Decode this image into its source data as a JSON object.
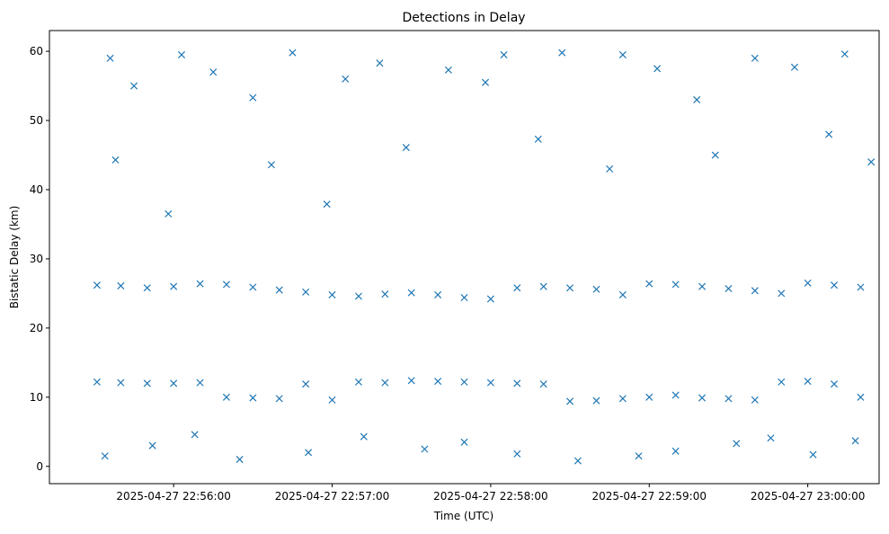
{
  "chart_data": {
    "type": "scatter",
    "title": "Detections in Delay",
    "xlabel": "Time (UTC)",
    "ylabel": "Bistatic Delay (km)",
    "marker": "x",
    "color": "#1f77b4",
    "x_range": [
      "2025-04-27 22:55:13",
      "2025-04-27 23:00:27"
    ],
    "ylim": [
      -2.5,
      63
    ],
    "x_ticks": [
      "2025-04-27 22:56:00",
      "2025-04-27 22:57:00",
      "2025-04-27 22:58:00",
      "2025-04-27 22:59:00",
      "2025-04-27 23:00:00"
    ],
    "y_ticks": [
      0,
      10,
      20,
      30,
      40,
      50,
      60
    ],
    "grid": false,
    "legend": "none",
    "time_range": [
      "2025-04-27 22:55:31",
      "2025-04-27 23:00:24"
    ],
    "series": [
      {
        "description": "Upper track near 26 km",
        "points": [
          [
            "2025-04-27 22:55:31",
            26.2
          ],
          [
            "2025-04-27 22:55:40",
            26.1
          ],
          [
            "2025-04-27 22:55:50",
            25.8
          ],
          [
            "2025-04-27 22:56:00",
            26.0
          ],
          [
            "2025-04-27 22:56:10",
            26.4
          ],
          [
            "2025-04-27 22:56:20",
            26.3
          ],
          [
            "2025-04-27 22:56:30",
            25.9
          ],
          [
            "2025-04-27 22:56:40",
            25.5
          ],
          [
            "2025-04-27 22:56:50",
            25.2
          ],
          [
            "2025-04-27 22:57:00",
            24.8
          ],
          [
            "2025-04-27 22:57:10",
            24.6
          ],
          [
            "2025-04-27 22:57:20",
            24.9
          ],
          [
            "2025-04-27 22:57:30",
            25.1
          ],
          [
            "2025-04-27 22:57:40",
            24.8
          ],
          [
            "2025-04-27 22:57:50",
            24.4
          ],
          [
            "2025-04-27 22:58:00",
            24.2
          ],
          [
            "2025-04-27 22:58:10",
            25.8
          ],
          [
            "2025-04-27 22:58:20",
            26.0
          ],
          [
            "2025-04-27 22:58:30",
            25.8
          ],
          [
            "2025-04-27 22:58:40",
            25.6
          ],
          [
            "2025-04-27 22:58:50",
            24.8
          ],
          [
            "2025-04-27 22:59:00",
            26.4
          ],
          [
            "2025-04-27 22:59:10",
            26.3
          ],
          [
            "2025-04-27 22:59:20",
            26.0
          ],
          [
            "2025-04-27 22:59:30",
            25.7
          ],
          [
            "2025-04-27 22:59:40",
            25.4
          ],
          [
            "2025-04-27 22:59:50",
            25.0
          ],
          [
            "2025-04-27 23:00:00",
            26.5
          ],
          [
            "2025-04-27 23:00:10",
            26.2
          ],
          [
            "2025-04-27 23:00:20",
            25.9
          ]
        ]
      },
      {
        "description": "Lower track near 12 km",
        "points": [
          [
            "2025-04-27 22:55:31",
            12.2
          ],
          [
            "2025-04-27 22:55:40",
            12.1
          ],
          [
            "2025-04-27 22:55:50",
            12.0
          ],
          [
            "2025-04-27 22:56:00",
            12.0
          ],
          [
            "2025-04-27 22:56:10",
            12.1
          ],
          [
            "2025-04-27 22:56:20",
            10.0
          ],
          [
            "2025-04-27 22:56:30",
            9.9
          ],
          [
            "2025-04-27 22:56:40",
            9.8
          ],
          [
            "2025-04-27 22:56:50",
            11.9
          ],
          [
            "2025-04-27 22:57:00",
            9.6
          ],
          [
            "2025-04-27 22:57:10",
            12.2
          ],
          [
            "2025-04-27 22:57:20",
            12.1
          ],
          [
            "2025-04-27 22:57:30",
            12.4
          ],
          [
            "2025-04-27 22:57:40",
            12.3
          ],
          [
            "2025-04-27 22:57:50",
            12.2
          ],
          [
            "2025-04-27 22:58:00",
            12.1
          ],
          [
            "2025-04-27 22:58:10",
            12.0
          ],
          [
            "2025-04-27 22:58:20",
            11.9
          ],
          [
            "2025-04-27 22:58:30",
            9.4
          ],
          [
            "2025-04-27 22:58:40",
            9.5
          ],
          [
            "2025-04-27 22:58:50",
            9.8
          ],
          [
            "2025-04-27 22:59:00",
            10.0
          ],
          [
            "2025-04-27 22:59:10",
            10.3
          ],
          [
            "2025-04-27 22:59:20",
            9.9
          ],
          [
            "2025-04-27 22:59:30",
            9.8
          ],
          [
            "2025-04-27 22:59:40",
            9.6
          ],
          [
            "2025-04-27 22:59:50",
            12.2
          ],
          [
            "2025-04-27 23:00:00",
            12.3
          ],
          [
            "2025-04-27 23:00:10",
            11.9
          ],
          [
            "2025-04-27 23:00:20",
            10.0
          ]
        ]
      },
      {
        "description": "Scattered detections (0–60 km, roughly uniform)",
        "points": [
          [
            "2025-04-27 22:55:34",
            1.5
          ],
          [
            "2025-04-27 22:55:36",
            59.0
          ],
          [
            "2025-04-27 22:55:38",
            44.3
          ],
          [
            "2025-04-27 22:55:45",
            55.0
          ],
          [
            "2025-04-27 22:55:52",
            3.0
          ],
          [
            "2025-04-27 22:55:58",
            36.5
          ],
          [
            "2025-04-27 22:56:03",
            59.5
          ],
          [
            "2025-04-27 22:56:08",
            4.6
          ],
          [
            "2025-04-27 22:56:15",
            57.0
          ],
          [
            "2025-04-27 22:56:25",
            1.0
          ],
          [
            "2025-04-27 22:56:30",
            53.3
          ],
          [
            "2025-04-27 22:56:37",
            43.6
          ],
          [
            "2025-04-27 22:56:45",
            59.8
          ],
          [
            "2025-04-27 22:56:51",
            2.0
          ],
          [
            "2025-04-27 22:56:58",
            37.9
          ],
          [
            "2025-04-27 22:57:05",
            56.0
          ],
          [
            "2025-04-27 22:57:12",
            4.3
          ],
          [
            "2025-04-27 22:57:18",
            58.3
          ],
          [
            "2025-04-27 22:57:28",
            46.1
          ],
          [
            "2025-04-27 22:57:35",
            2.5
          ],
          [
            "2025-04-27 22:57:44",
            57.3
          ],
          [
            "2025-04-27 22:57:50",
            3.5
          ],
          [
            "2025-04-27 22:57:58",
            55.5
          ],
          [
            "2025-04-27 22:58:05",
            59.5
          ],
          [
            "2025-04-27 22:58:10",
            1.8
          ],
          [
            "2025-04-27 22:58:18",
            47.3
          ],
          [
            "2025-04-27 22:58:27",
            59.8
          ],
          [
            "2025-04-27 22:58:33",
            0.8
          ],
          [
            "2025-04-27 22:58:45",
            43.0
          ],
          [
            "2025-04-27 22:58:50",
            59.5
          ],
          [
            "2025-04-27 22:58:56",
            1.5
          ],
          [
            "2025-04-27 22:59:03",
            57.5
          ],
          [
            "2025-04-27 22:59:10",
            2.2
          ],
          [
            "2025-04-27 22:59:18",
            53.0
          ],
          [
            "2025-04-27 22:59:25",
            45.0
          ],
          [
            "2025-04-27 22:59:33",
            3.3
          ],
          [
            "2025-04-27 22:59:40",
            59.0
          ],
          [
            "2025-04-27 22:59:46",
            4.1
          ],
          [
            "2025-04-27 22:59:55",
            57.7
          ],
          [
            "2025-04-27 23:00:02",
            1.7
          ],
          [
            "2025-04-27 23:00:08",
            48.0
          ],
          [
            "2025-04-27 23:00:14",
            59.6
          ],
          [
            "2025-04-27 23:00:18",
            3.7
          ],
          [
            "2025-04-27 23:00:24",
            44.0
          ]
        ]
      }
    ]
  }
}
